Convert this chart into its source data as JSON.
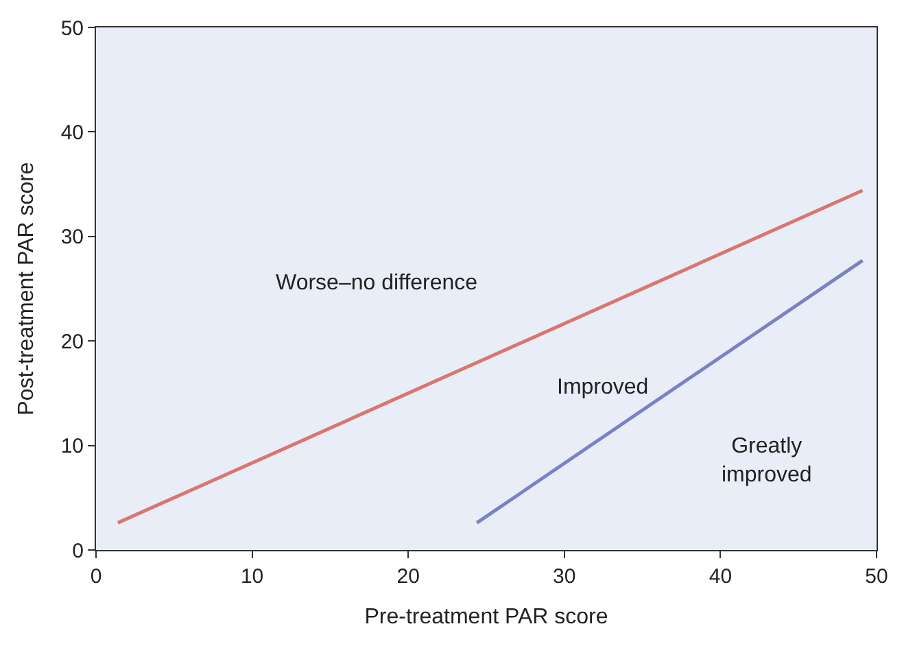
{
  "chart_data": {
    "type": "line",
    "xlabel": "Pre-treatment PAR score",
    "ylabel": "Post-treatment PAR score",
    "series": [
      {
        "color": "#d9776f",
        "x": [
          1.4,
          49.1
        ],
        "values": [
          2.6,
          34.4
        ]
      },
      {
        "color": "#7b82c4",
        "x": [
          24.4,
          49.1
        ],
        "values": [
          2.6,
          27.7
        ]
      }
    ],
    "xlim": [
      0,
      50
    ],
    "xticks": [
      0,
      10,
      20,
      30,
      40,
      50
    ],
    "ylim": [
      0,
      50
    ],
    "yticks": [
      0,
      10,
      20,
      30,
      40,
      50
    ],
    "grid": false,
    "marker": "none",
    "line_style": "solid",
    "annotations": [
      "Worse–no difference",
      "Improved",
      "Greatly\nimproved"
    ]
  }
}
